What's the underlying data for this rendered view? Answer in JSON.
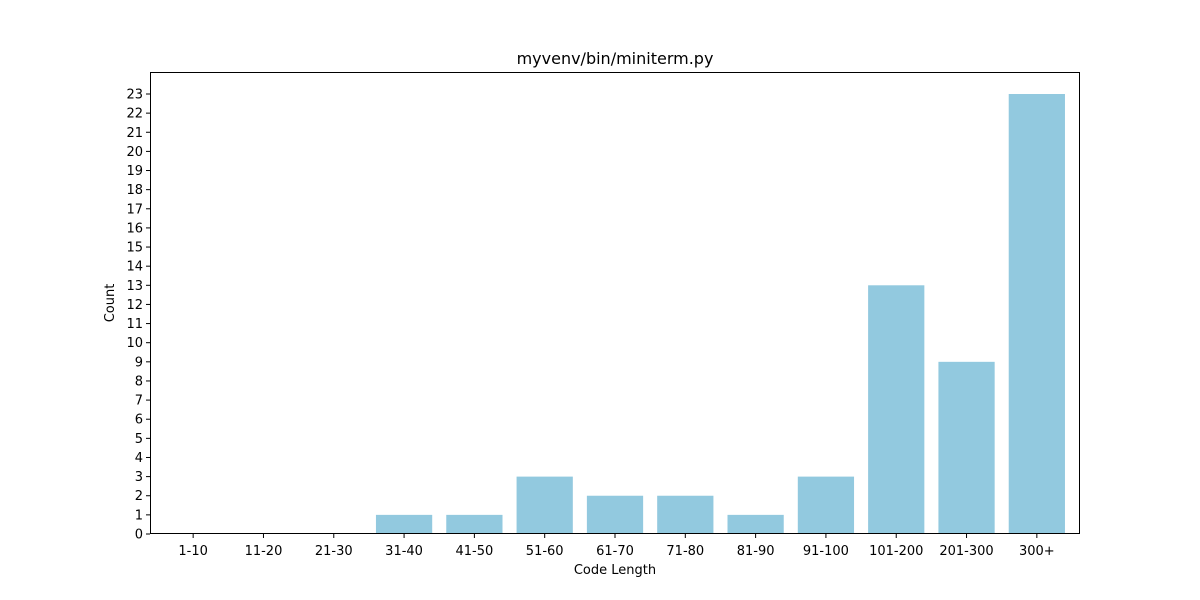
{
  "chart_data": {
    "type": "bar",
    "title": "myvenv/bin/miniterm.py",
    "xlabel": "Code Length",
    "ylabel": "Count",
    "categories": [
      "1-10",
      "11-20",
      "21-30",
      "31-40",
      "41-50",
      "51-60",
      "61-70",
      "71-80",
      "81-90",
      "91-100",
      "101-200",
      "201-300",
      "300+"
    ],
    "values": [
      0,
      0,
      0,
      1,
      1,
      3,
      2,
      2,
      1,
      3,
      13,
      9,
      23
    ],
    "ylim": [
      0,
      24.15
    ],
    "yticks": [
      0,
      1,
      2,
      3,
      4,
      5,
      6,
      7,
      8,
      9,
      10,
      11,
      12,
      13,
      14,
      15,
      16,
      17,
      18,
      19,
      20,
      21,
      22,
      23
    ],
    "grid": false,
    "legend": "none",
    "bar_color": "#92c9df"
  }
}
